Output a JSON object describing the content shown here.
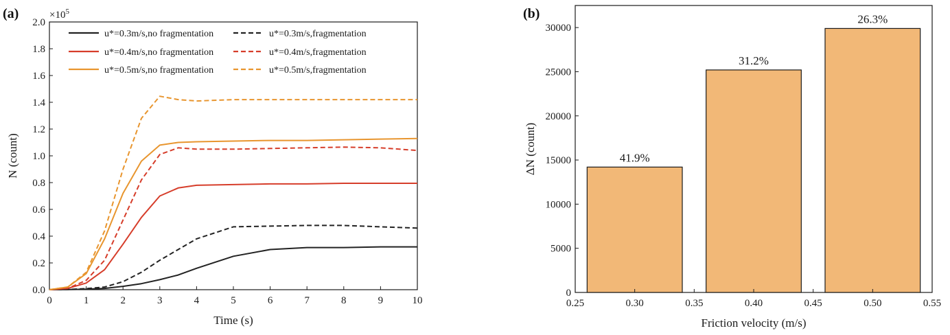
{
  "chart_data": [
    {
      "panel": "(a)",
      "type": "line",
      "xlabel": "Time (s)",
      "ylabel": "N (count)",
      "exponent_label": "×10",
      "exponent_power": "5",
      "xlim": [
        0,
        10
      ],
      "ylim": [
        0,
        2.0
      ],
      "x_ticks": [
        "0",
        "1",
        "2",
        "3",
        "4",
        "5",
        "6",
        "7",
        "8",
        "9",
        "10"
      ],
      "y_ticks": [
        "0.0",
        "0.2",
        "0.4",
        "0.6",
        "0.8",
        "1.0",
        "1.2",
        "1.4",
        "1.6",
        "1.8",
        "2.0"
      ],
      "grid": false,
      "legend_position": "top",
      "x": [
        0,
        0.5,
        1,
        1.5,
        2,
        2.5,
        3,
        3.5,
        4,
        5,
        6,
        7,
        8,
        9,
        10
      ],
      "series": [
        {
          "name": "u*=0.3m/s,no fragmentation",
          "color": "#222222",
          "style": "solid",
          "values": [
            0,
            0.001,
            0.004,
            0.01,
            0.025,
            0.045,
            0.075,
            0.11,
            0.16,
            0.25,
            0.3,
            0.315,
            0.315,
            0.32,
            0.32
          ]
        },
        {
          "name": "u*=0.3m/s,fragmentation",
          "color": "#222222",
          "style": "dashed",
          "values": [
            0,
            0.002,
            0.008,
            0.02,
            0.06,
            0.13,
            0.22,
            0.3,
            0.38,
            0.47,
            0.475,
            0.48,
            0.48,
            0.47,
            0.46
          ]
        },
        {
          "name": "u*=0.4m/s,no fragmentation",
          "color": "#d63d2a",
          "style": "solid",
          "values": [
            0,
            0.01,
            0.05,
            0.15,
            0.34,
            0.54,
            0.7,
            0.76,
            0.78,
            0.785,
            0.79,
            0.79,
            0.795,
            0.795,
            0.795
          ]
        },
        {
          "name": "u*=0.4m/s,fragmentation",
          "color": "#d63d2a",
          "style": "dashed",
          "values": [
            0,
            0.01,
            0.07,
            0.22,
            0.52,
            0.82,
            1.01,
            1.06,
            1.05,
            1.05,
            1.055,
            1.06,
            1.065,
            1.06,
            1.04
          ]
        },
        {
          "name": "u*=0.5m/s,no fragmentation",
          "color": "#e8952e",
          "style": "solid",
          "values": [
            0,
            0.02,
            0.12,
            0.38,
            0.72,
            0.96,
            1.08,
            1.1,
            1.105,
            1.11,
            1.115,
            1.115,
            1.12,
            1.125,
            1.13
          ]
        },
        {
          "name": "u*=0.5m/s,fragmentation",
          "color": "#e8952e",
          "style": "dashed",
          "values": [
            0,
            0.02,
            0.13,
            0.44,
            0.9,
            1.28,
            1.445,
            1.42,
            1.41,
            1.42,
            1.42,
            1.42,
            1.42,
            1.42,
            1.42
          ]
        }
      ]
    },
    {
      "panel": "(b)",
      "type": "bar",
      "xlabel": "Friction velocity (m/s)",
      "ylabel": "ΔN (count)",
      "xlim": [
        0.25,
        0.55
      ],
      "ylim": [
        0,
        32500
      ],
      "x_ticks": [
        "0.25",
        "0.30",
        "0.35",
        "0.40",
        "0.45",
        "0.50",
        "0.55"
      ],
      "y_ticks": [
        "0",
        "5000",
        "10000",
        "15000",
        "20000",
        "25000",
        "30000"
      ],
      "grid": false,
      "bar_color": "#f2b877",
      "bar_width": 0.08,
      "categories": [
        0.3,
        0.4,
        0.5
      ],
      "values": [
        14200,
        25200,
        29900
      ],
      "data_labels": [
        "41.9%",
        "31.2%",
        "26.3%"
      ]
    }
  ]
}
